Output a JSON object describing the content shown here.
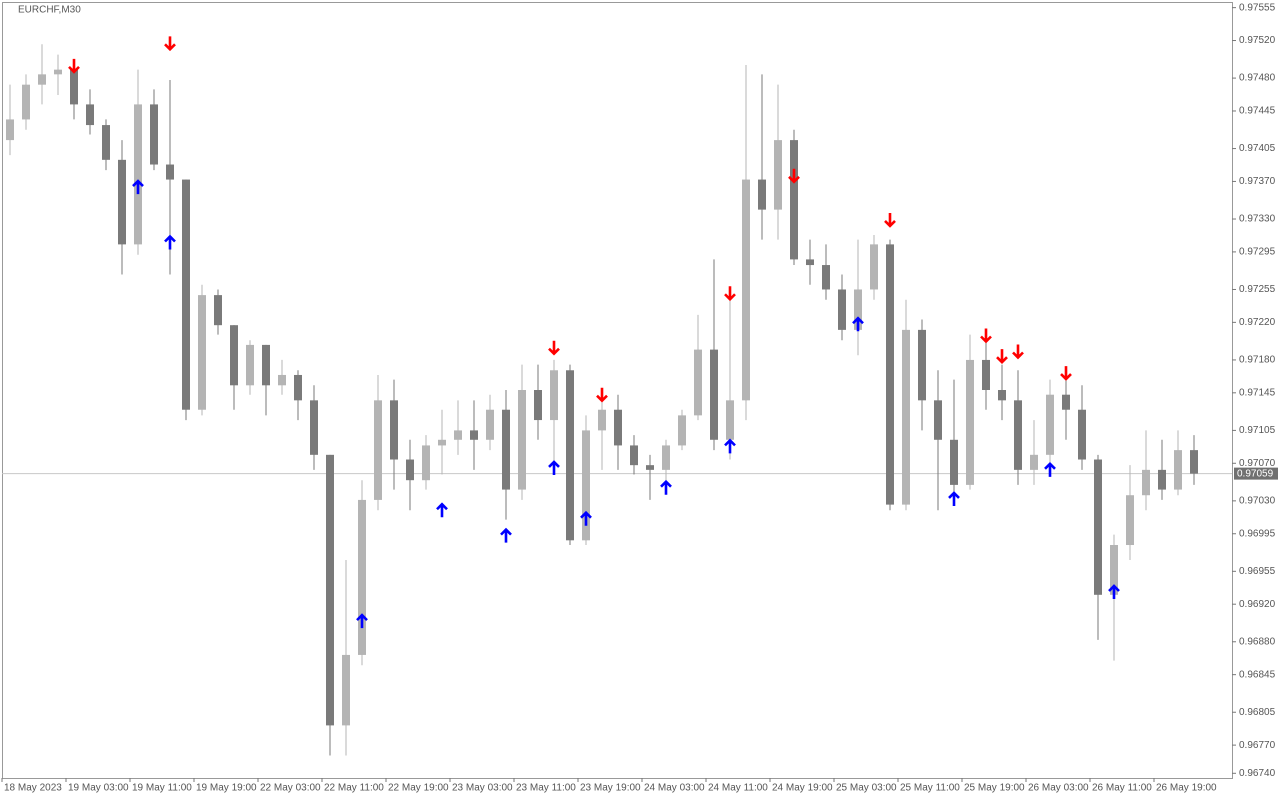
{
  "chart_data": {
    "type": "candlestick",
    "title": "EURCHF,M30",
    "categories": [
      "18 May 2023",
      null,
      null,
      null,
      "19 May 03:00",
      null,
      null,
      null,
      "19 May 11:00",
      null,
      null,
      null,
      "19 May 19:00",
      null,
      null,
      null,
      "22 May 03:00",
      null,
      null,
      null,
      "22 May 11:00",
      null,
      null,
      null,
      "22 May 19:00",
      null,
      null,
      null,
      "23 May 03:00",
      null,
      null,
      null,
      "23 May 11:00",
      null,
      null,
      null,
      "23 May 19:00",
      null,
      null,
      null,
      "24 May 03:00",
      null,
      null,
      null,
      "24 May 11:00",
      null,
      null,
      null,
      "24 May 19:00",
      null,
      null,
      null,
      "25 May 03:00",
      null,
      null,
      null,
      "25 May 11:00",
      null,
      null,
      null,
      "25 May 19:00",
      null,
      null,
      null,
      "26 May 03:00",
      null,
      null,
      null,
      "26 May 11:00",
      null,
      null,
      null,
      "26 May 19:00",
      null,
      null
    ],
    "open": [
      0.97414,
      0.97436,
      0.97473,
      0.97484,
      0.97489,
      0.97452,
      0.9743,
      0.97393,
      0.97303,
      0.97452,
      0.97388,
      0.97372,
      0.97127,
      0.97249,
      0.97217,
      0.97153,
      0.97196,
      0.97153,
      0.97164,
      0.97137,
      0.97079,
      0.96791,
      0.96866,
      0.97031,
      0.97137,
      0.97074,
      0.97052,
      0.97089,
      0.97095,
      0.97105,
      0.97095,
      0.97127,
      0.97042,
      0.97148,
      0.97116,
      0.97169,
      0.96988,
      0.97105,
      0.97127,
      0.97089,
      0.97068,
      0.97063,
      0.97089,
      0.97121,
      0.97191,
      0.97095,
      0.97137,
      0.97372,
      0.9734,
      0.97414,
      0.97287,
      0.97281,
      0.97255,
      0.97212,
      0.97255,
      0.97303,
      0.97026,
      0.97212,
      0.97137,
      0.97095,
      0.97047,
      0.9718,
      0.97148,
      0.97137,
      0.97063,
      0.97079,
      0.97143,
      0.97127,
      0.97074,
      0.9693,
      0.96983,
      0.97036,
      0.97063,
      0.97042,
      0.97084
    ],
    "high": [
      0.97473,
      0.97484,
      0.97516,
      0.97505,
      0.97489,
      0.97468,
      0.97436,
      0.97414,
      0.97489,
      0.97468,
      0.97478,
      0.97372,
      0.9726,
      0.97255,
      0.97217,
      0.97201,
      0.97196,
      0.9718,
      0.97169,
      0.97153,
      0.97079,
      0.96967,
      0.97052,
      0.97164,
      0.97159,
      0.97095,
      0.971,
      0.97127,
      0.97137,
      0.97137,
      0.97143,
      0.97148,
      0.97175,
      0.97175,
      0.9718,
      0.97175,
      0.97121,
      0.97148,
      0.97143,
      0.971,
      0.97079,
      0.97095,
      0.97127,
      0.97228,
      0.97287,
      0.97255,
      0.97494,
      0.97484,
      0.97473,
      0.97425,
      0.97308,
      0.97303,
      0.97271,
      0.97308,
      0.97313,
      0.97308,
      0.97244,
      0.97223,
      0.97169,
      0.97159,
      0.97207,
      0.97201,
      0.97175,
      0.97169,
      0.97116,
      0.97159,
      0.97159,
      0.97153,
      0.97079,
      0.96994,
      0.97068,
      0.97105,
      0.97095,
      0.97105,
      0.971
    ],
    "low": [
      0.97398,
      0.97425,
      0.97452,
      0.97462,
      0.97436,
      0.9742,
      0.97382,
      0.97271,
      0.97292,
      0.97382,
      0.97271,
      0.97116,
      0.97121,
      0.97207,
      0.97127,
      0.97143,
      0.97121,
      0.97143,
      0.97116,
      0.97063,
      0.96759,
      0.96759,
      0.96855,
      0.9702,
      0.97042,
      0.9702,
      0.97042,
      0.97058,
      0.97079,
      0.97063,
      0.97084,
      0.9701,
      0.97031,
      0.97095,
      0.97063,
      0.96983,
      0.96983,
      0.97063,
      0.97063,
      0.97058,
      0.97031,
      0.97052,
      0.97084,
      0.97116,
      0.97084,
      0.97074,
      0.97116,
      0.97308,
      0.97308,
      0.97281,
      0.9726,
      0.97244,
      0.97201,
      0.97185,
      0.97244,
      0.9702,
      0.9702,
      0.97105,
      0.9702,
      0.97031,
      0.97042,
      0.97127,
      0.97116,
      0.97047,
      0.97047,
      0.97058,
      0.97095,
      0.97063,
      0.96882,
      0.9686,
      0.96967,
      0.9702,
      0.97031,
      0.97036,
      0.97047
    ],
    "close": [
      0.97436,
      0.97473,
      0.97484,
      0.97489,
      0.97452,
      0.9743,
      0.97393,
      0.97303,
      0.97452,
      0.97388,
      0.97372,
      0.97127,
      0.97249,
      0.97217,
      0.97153,
      0.97196,
      0.97153,
      0.97164,
      0.97137,
      0.97079,
      0.96791,
      0.96866,
      0.97031,
      0.97137,
      0.97074,
      0.97052,
      0.97089,
      0.97095,
      0.97105,
      0.97095,
      0.97127,
      0.97042,
      0.97148,
      0.97116,
      0.97169,
      0.96988,
      0.97105,
      0.97127,
      0.97089,
      0.97068,
      0.97063,
      0.97089,
      0.97121,
      0.97191,
      0.97095,
      0.97137,
      0.97372,
      0.9734,
      0.97414,
      0.97287,
      0.97281,
      0.97255,
      0.97212,
      0.97255,
      0.97303,
      0.97026,
      0.97212,
      0.97137,
      0.97095,
      0.97047,
      0.9718,
      0.97148,
      0.97137,
      0.97063,
      0.97079,
      0.97143,
      0.97127,
      0.97074,
      0.9693,
      0.96983,
      0.97036,
      0.97063,
      0.97042,
      0.97084,
      0.97059
    ],
    "bull_color": "#b4b4b4",
    "bear_color": "#7a7a7a",
    "down_arrows": {
      "color": "#ff0000",
      "x": [
        4,
        10,
        34,
        37,
        45,
        49,
        55,
        61,
        62,
        63,
        66
      ],
      "values": [
        0.97493,
        0.97517,
        0.97193,
        0.97143,
        0.97251,
        0.97376,
        0.97329,
        0.97206,
        0.97184,
        0.97189,
        0.97166
      ]
    },
    "up_arrows": {
      "color": "#0000ff",
      "x": [
        8,
        10,
        22,
        27,
        31,
        34,
        36,
        41,
        45,
        53,
        59,
        65,
        69
      ],
      "values": [
        0.97364,
        0.97305,
        0.96902,
        0.9702,
        0.96993,
        0.97065,
        0.97011,
        0.97044,
        0.97088,
        0.97218,
        0.97032,
        0.97063,
        0.96933
      ]
    },
    "current_price": 0.97059,
    "ylim": [
      0.96735,
      0.97561
    ],
    "yticks": [
      0.97555,
      {
        "value": 0.9752,
        "label": "0.97520"
      },
      {
        "value": 0.9748,
        "label": "0.97480"
      },
      0.97445,
      0.97405,
      {
        "value": 0.9737,
        "label": "0.97370"
      },
      {
        "value": 0.9733,
        "label": "0.97330"
      },
      0.97295,
      0.97255,
      {
        "value": 0.9722,
        "label": "0.97220"
      },
      {
        "value": 0.9718,
        "label": "0.97180"
      },
      0.97145,
      0.97105,
      {
        "value": 0.9707,
        "label": "0.97070"
      },
      {
        "value": 0.9703,
        "label": "0.97030"
      },
      0.96995,
      0.96955,
      {
        "value": 0.9692,
        "label": "0.96920"
      },
      {
        "value": 0.9688,
        "label": "0.96880"
      },
      0.96845,
      0.96805,
      {
        "value": 0.9677,
        "label": "0.96770"
      },
      {
        "value": 0.9674,
        "label": "0.96740"
      }
    ],
    "grid": false
  }
}
